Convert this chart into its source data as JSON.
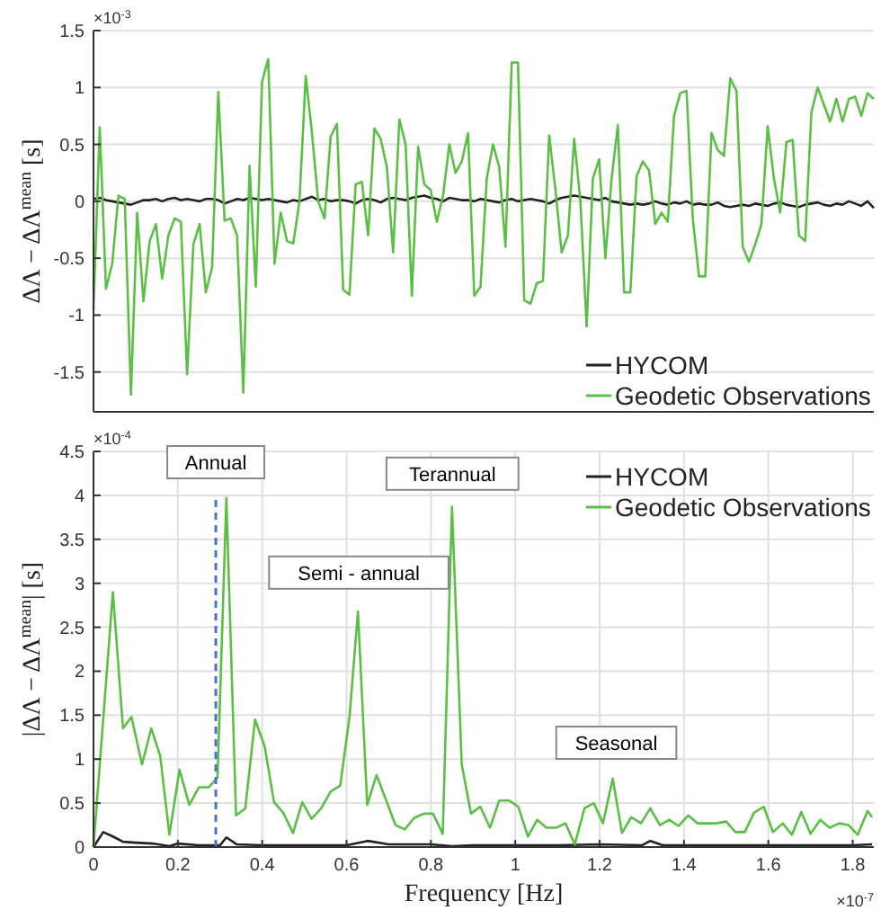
{
  "chart_data": [
    {
      "type": "line",
      "ylabel": "ΔΛ − ΔΛ$^{mean}$ [s]",
      "annotations": [
        "×10$^{-3}$"
      ],
      "categories": [
        null,
        null,
        null,
        null,
        null,
        null,
        null,
        null,
        null,
        null,
        null,
        null,
        null,
        null,
        null,
        null,
        null,
        null,
        null,
        null,
        null,
        null,
        null,
        null,
        null,
        null,
        null,
        null,
        null,
        null,
        null,
        null,
        null,
        null,
        null,
        null,
        null,
        null,
        null,
        null,
        null,
        null,
        null,
        null,
        null,
        null,
        null,
        null,
        null,
        null,
        null,
        null,
        null,
        null,
        null,
        null,
        null,
        null,
        null,
        null,
        null,
        null,
        null,
        null,
        null,
        null,
        null,
        null,
        null,
        null,
        null,
        null,
        null,
        null,
        null,
        null,
        null,
        null,
        null,
        null,
        null,
        null,
        null,
        null,
        null,
        null,
        null,
        null,
        null,
        null,
        null,
        null,
        null,
        null,
        null,
        null,
        null,
        null,
        null,
        null,
        null,
        null,
        null,
        null,
        null,
        null,
        null,
        null,
        null,
        null,
        null,
        null,
        null,
        null,
        null,
        null,
        null,
        null,
        null,
        null,
        null,
        null,
        null,
        null,
        null,
        null
      ],
      "series": [
        {
          "name": "HYCOM",
          "color": "#222222",
          "values": [
            0.02,
            0.03,
            0.01,
            0.0,
            -0.01,
            -0.02,
            -0.03,
            -0.01,
            0.01,
            0.01,
            0.02,
            0.0,
            0.02,
            0.03,
            0.01,
            0.02,
            0.01,
            0.0,
            0.02,
            0.02,
            0.01,
            -0.02,
            0.0,
            0.02,
            0.01,
            0.03,
            0.02,
            0.01,
            0.02,
            0.01,
            0.0,
            -0.01,
            0.01,
            0.0,
            0.02,
            0.04,
            0.01,
            0.02,
            0.0,
            0.01,
            0.01,
            0.0,
            -0.02,
            0.01,
            0.02,
            0.01,
            -0.01,
            0.02,
            0.03,
            0.02,
            0.01,
            0.03,
            0.04,
            0.05,
            0.03,
            0.02,
            0.0,
            0.03,
            0.02,
            0.01,
            0.01,
            0.0,
            0.02,
            0.01,
            0.0,
            -0.01,
            0.01,
            0.02,
            0.0,
            0.01,
            0.02,
            0.01,
            0.0,
            -0.02,
            0.01,
            0.03,
            0.04,
            0.05,
            0.04,
            0.03,
            0.02,
            0.01,
            0.03,
            0.0,
            -0.01,
            -0.02,
            -0.03,
            -0.02,
            -0.03,
            -0.02,
            0.0,
            -0.02,
            -0.03,
            -0.01,
            -0.02,
            0.0,
            -0.03,
            -0.02,
            -0.03,
            -0.03,
            -0.01,
            -0.04,
            -0.05,
            -0.04,
            -0.03,
            -0.04,
            -0.02,
            -0.03,
            -0.04,
            -0.02,
            -0.01,
            -0.03,
            -0.04,
            -0.05,
            -0.03,
            -0.02,
            -0.01,
            -0.03,
            -0.04,
            -0.02,
            -0.03,
            0.0,
            -0.02,
            -0.04,
            0.0,
            -0.06
          ]
        },
        {
          "name": "Geodetic Observations",
          "color": "#5cbf45",
          "values": [
            -0.95,
            0.65,
            -0.77,
            -0.55,
            0.05,
            0.02,
            -1.7,
            -0.1,
            -0.88,
            -0.35,
            -0.2,
            -0.68,
            -0.3,
            -0.15,
            -0.18,
            -1.52,
            -0.38,
            -0.2,
            -0.8,
            -0.58,
            0.96,
            -0.17,
            -0.15,
            -0.3,
            -1.68,
            0.31,
            -0.75,
            1.05,
            1.25,
            -0.55,
            -0.1,
            -0.35,
            -0.37,
            0.0,
            1.1,
            0.6,
            0.0,
            -0.15,
            0.57,
            0.68,
            -0.78,
            -0.82,
            0.15,
            0.17,
            -0.3,
            0.64,
            0.55,
            0.3,
            -0.45,
            0.72,
            0.5,
            -0.83,
            0.48,
            0.15,
            0.1,
            -0.18,
            0.05,
            0.5,
            0.25,
            0.35,
            0.6,
            -0.83,
            -0.75,
            0.2,
            0.5,
            0.3,
            -0.4,
            1.22,
            1.22,
            -0.87,
            -0.9,
            -0.72,
            -0.7,
            0.58,
            0.1,
            -0.45,
            -0.3,
            0.55,
            0.0,
            -1.1,
            0.2,
            0.37,
            -0.5,
            0.2,
            0.67,
            -0.8,
            -0.8,
            0.22,
            0.35,
            0.27,
            -0.2,
            -0.1,
            -0.18,
            0.75,
            0.95,
            0.97,
            -0.15,
            -0.66,
            -0.66,
            0.6,
            0.45,
            0.4,
            1.08,
            0.97,
            -0.4,
            -0.53,
            -0.38,
            -0.2,
            0.66,
            0.2,
            -0.1,
            0.52,
            0.54,
            -0.3,
            -0.35,
            0.78,
            1.0,
            0.85,
            0.7,
            0.9,
            0.7,
            0.9,
            0.92,
            0.75,
            0.95,
            0.9
          ]
        }
      ],
      "ylim": [
        -1.85,
        1.5
      ],
      "yticks": [
        -1.5,
        -1,
        -0.5,
        0,
        0.5,
        1,
        1.5
      ],
      "grid": "y",
      "legend": "bottom right",
      "tick_labels": "y"
    },
    {
      "type": "line",
      "xlabel": "Frequency [Hz]",
      "ylabel": "|ΔΛ − ΔΛ$^{mean}$| [s]",
      "annotations": [
        "×10$^{-4}$",
        "×10$^{-7}$",
        "Semi - annual",
        "Terannual",
        "Seasonal"
      ],
      "series": [
        {
          "name": "HYCOM",
          "color": "#222222",
          "x": [
            0,
            0.023,
            0.046,
            0.07,
            0.1,
            0.14,
            0.18,
            0.2,
            0.25,
            0.3,
            0.315,
            0.34,
            0.4,
            0.5,
            0.6,
            0.65,
            0.7,
            0.8,
            0.85,
            0.9,
            1.0,
            1.1,
            1.2,
            1.3,
            1.32,
            1.35,
            1.5,
            1.6,
            1.7,
            1.8,
            1.846
          ],
          "values": [
            0,
            0.17,
            0.12,
            0.06,
            0.05,
            0.04,
            0.01,
            0.04,
            0.02,
            0.02,
            0.11,
            0.03,
            0.02,
            0.02,
            0.02,
            0.07,
            0.03,
            0.03,
            0.01,
            0.02,
            0.02,
            0.02,
            0.03,
            0.02,
            0.07,
            0.02,
            0.02,
            0.02,
            0.02,
            0.02,
            0.03
          ]
        },
        {
          "name": "Geodetic Observations",
          "color": "#5cbf45",
          "x": [
            0,
            0.046,
            0.07,
            0.09,
            0.115,
            0.137,
            0.158,
            0.18,
            0.204,
            0.227,
            0.25,
            0.273,
            0.294,
            0.315,
            0.338,
            0.36,
            0.383,
            0.406,
            0.428,
            0.45,
            0.473,
            0.495,
            0.517,
            0.54,
            0.562,
            0.585,
            0.607,
            0.627,
            0.649,
            0.671,
            0.694,
            0.716,
            0.738,
            0.76,
            0.783,
            0.805,
            0.828,
            0.85,
            0.873,
            0.895,
            0.917,
            0.94,
            0.962,
            0.985,
            1.007,
            1.03,
            1.052,
            1.074,
            1.097,
            1.119,
            1.141,
            1.164,
            1.186,
            1.208,
            1.231,
            1.253,
            1.275,
            1.298,
            1.32,
            1.343,
            1.365,
            1.387,
            1.41,
            1.432,
            1.455,
            1.477,
            1.5,
            1.522,
            1.544,
            1.566,
            1.589,
            1.611,
            1.634,
            1.656,
            1.678,
            1.7,
            1.723,
            1.745,
            1.768,
            1.79,
            1.812,
            1.835,
            1.846
          ],
          "values": [
            0,
            2.9,
            1.35,
            1.48,
            0.94,
            1.35,
            1.04,
            0.14,
            0.88,
            0.48,
            0.68,
            0.68,
            0.79,
            3.97,
            0.36,
            0.44,
            1.45,
            1.14,
            0.51,
            0.39,
            0.16,
            0.51,
            0.32,
            0.44,
            0.63,
            0.7,
            1.48,
            2.68,
            0.48,
            0.82,
            0.53,
            0.25,
            0.2,
            0.33,
            0.38,
            0.38,
            0.15,
            3.87,
            0.94,
            0.38,
            0.46,
            0.22,
            0.53,
            0.53,
            0.46,
            0.12,
            0.31,
            0.22,
            0.22,
            0.27,
            0.03,
            0.44,
            0.5,
            0.27,
            0.78,
            0.16,
            0.34,
            0.27,
            0.44,
            0.25,
            0.31,
            0.24,
            0.36,
            0.27,
            0.27,
            0.27,
            0.29,
            0.17,
            0.17,
            0.39,
            0.46,
            0.17,
            0.27,
            0.14,
            0.4,
            0.15,
            0.31,
            0.22,
            0.27,
            0.25,
            0.14,
            0.41,
            0.34
          ]
        }
      ],
      "xlim": [
        0,
        1.85
      ],
      "xticks": [
        0,
        0.2,
        0.4,
        0.6,
        0.8,
        1,
        1.2,
        1.4,
        1.6,
        1.8
      ],
      "ylim": [
        0,
        4.5
      ],
      "yticks": [
        0,
        0.5,
        1,
        1.5,
        2,
        2.5,
        3,
        3.5,
        4,
        4.5
      ],
      "ref_lines": [
        {
          "axis": "x",
          "value": 0.29,
          "label": "Annual",
          "color": "#4a6fd0",
          "line_style": "dashed"
        }
      ],
      "grid": true,
      "legend": "top right"
    }
  ]
}
